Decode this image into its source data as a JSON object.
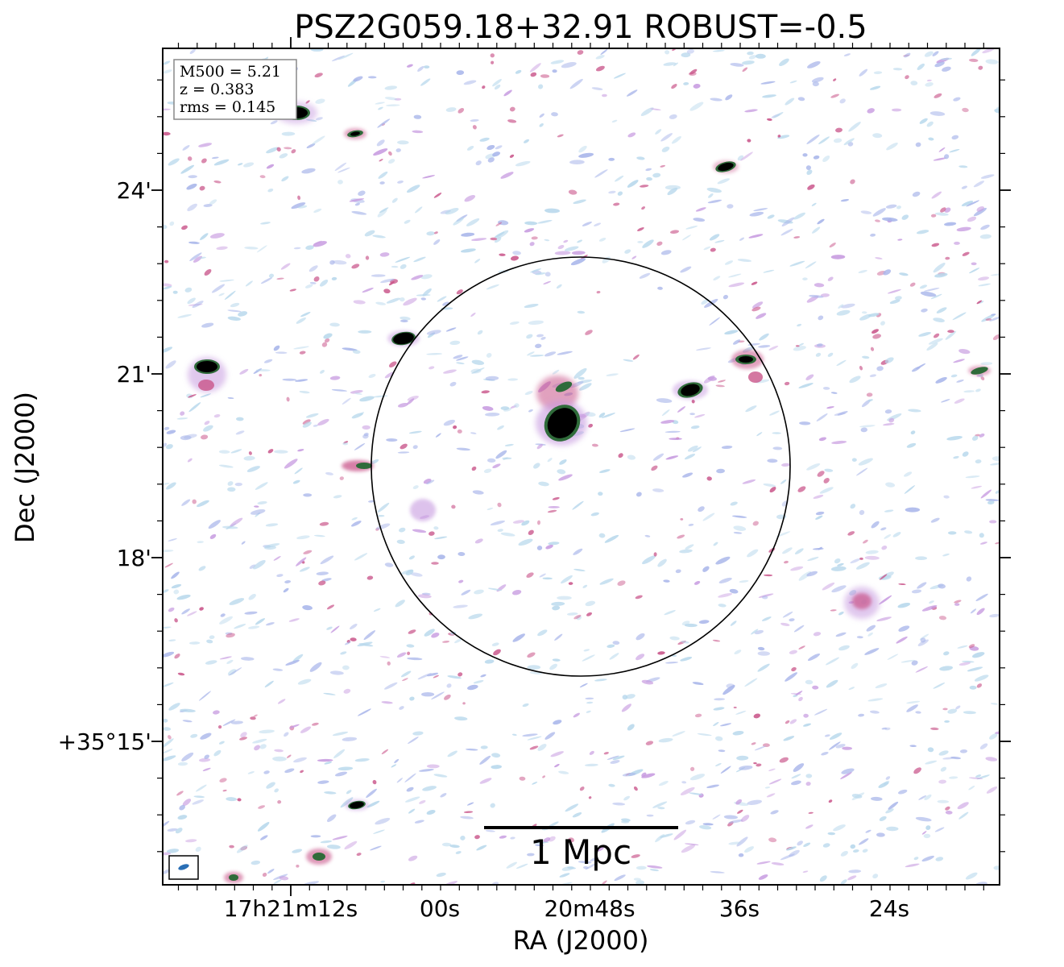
{
  "title": "PSZ2G059.18+32.91 ROBUST=-0.5",
  "xlabel": "RA (J2000)",
  "ylabel": "Dec (J2000)",
  "ra_ticks": [
    "17h21m12s",
    "00s",
    "20m48s",
    "36s",
    "24s"
  ],
  "dec_ticks": [
    "24'",
    "21'",
    "18'",
    "+35°15'"
  ],
  "info": {
    "m500": "M500 = 5.21",
    "z": "z = 0.383",
    "rms": "rms = 0.145"
  },
  "scalebar_label": "1 Mpc",
  "colors": {
    "frame": "#000000",
    "noise_light": "#b8d8ec",
    "noise_blue": "#a9b6ea",
    "noise_purple": "#c79be0",
    "noise_pink": "#c9558a",
    "source_core": "#000000",
    "source_green": "#2f6b3a",
    "beam": "#2a6fb5"
  }
}
